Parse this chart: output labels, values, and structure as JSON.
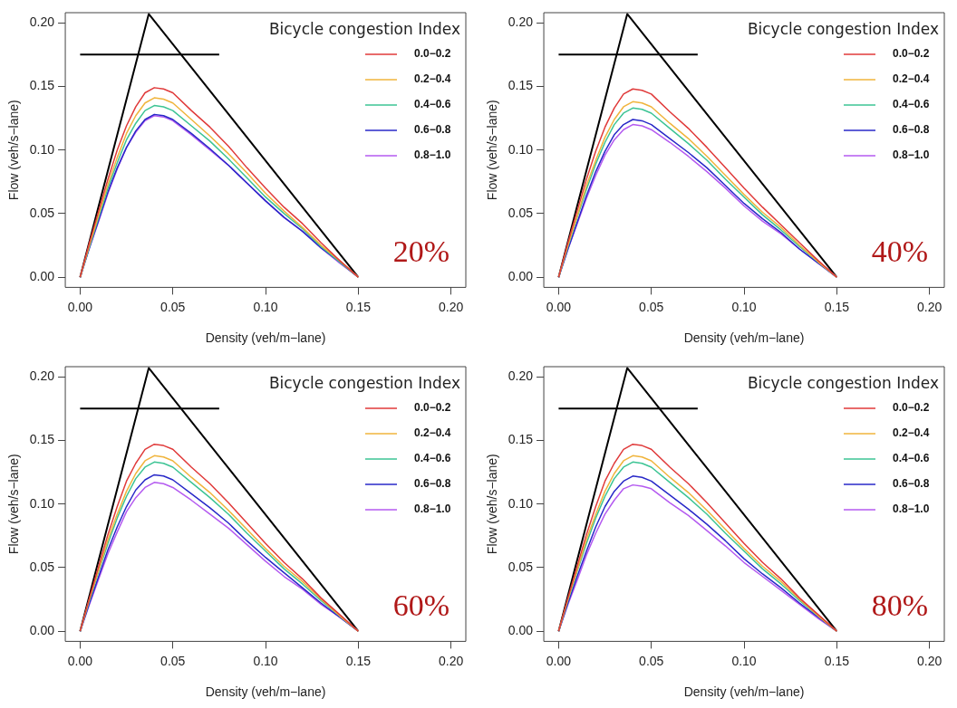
{
  "chart_data": [
    {
      "type": "line",
      "xlabel": "Density (veh/m−lane)",
      "ylabel": "Flow (veh/s−lane)",
      "legend_title": "Bicycle congestion Index",
      "legend": "top right",
      "grid": false,
      "annotations": [
        "20%"
      ],
      "x": [
        0,
        0.005,
        0.01,
        0.015,
        0.02,
        0.025,
        0.03,
        0.035,
        0.04,
        0.045,
        0.05,
        0.06,
        0.07,
        0.08,
        0.09,
        0.1,
        0.11,
        0.12,
        0.13,
        0.14,
        0.15
      ],
      "xlim": [
        -0.008,
        0.208
      ],
      "ylim": [
        -0.008,
        0.208
      ],
      "xticks": [
        {
          "value": 0,
          "label": "0.00"
        },
        {
          "value": 0.05,
          "label": "0.05"
        },
        {
          "value": 0.1,
          "label": "0.10"
        },
        {
          "value": 0.15,
          "label": "0.15"
        },
        {
          "value": 0.2,
          "label": "0.20"
        }
      ],
      "yticks": [
        {
          "value": 0,
          "label": "0.00"
        },
        {
          "value": 0.05,
          "label": "0.05"
        },
        {
          "value": 0.1,
          "label": "0.10"
        },
        {
          "value": 0.15,
          "label": "0.15"
        },
        {
          "value": 0.2,
          "label": "0.20"
        }
      ],
      "series": [
        {
          "name": "0.0−0.2",
          "color": "#e03a3a",
          "values": [
            0,
            0.027,
            0.052,
            0.077,
            0.1,
            0.119,
            0.134,
            0.145,
            0.149,
            0.148,
            0.145,
            0.131,
            0.118,
            0.103,
            0.086,
            0.07,
            0.055,
            0.042,
            0.027,
            0.013,
            0
          ]
        },
        {
          "name": "0.2−0.4",
          "color": "#f0b43c",
          "values": [
            0,
            0.025,
            0.049,
            0.073,
            0.094,
            0.113,
            0.127,
            0.137,
            0.141,
            0.14,
            0.137,
            0.124,
            0.111,
            0.097,
            0.082,
            0.066,
            0.052,
            0.039,
            0.025,
            0.013,
            0
          ]
        },
        {
          "name": "0.4−0.6",
          "color": "#3cc494",
          "values": [
            0,
            0.024,
            0.047,
            0.07,
            0.09,
            0.108,
            0.121,
            0.131,
            0.135,
            0.134,
            0.131,
            0.119,
            0.107,
            0.093,
            0.078,
            0.063,
            0.05,
            0.038,
            0.024,
            0.012,
            0
          ]
        },
        {
          "name": "0.6−0.8",
          "color": "#2828c8",
          "values": [
            0,
            0.023,
            0.045,
            0.067,
            0.086,
            0.102,
            0.115,
            0.124,
            0.128,
            0.127,
            0.124,
            0.113,
            0.101,
            0.088,
            0.074,
            0.06,
            0.047,
            0.036,
            0.023,
            0.012,
            0
          ]
        },
        {
          "name": "0.8−1.0",
          "color": "#b45af0",
          "values": [
            0,
            0.023,
            0.044,
            0.066,
            0.085,
            0.102,
            0.114,
            0.123,
            0.127,
            0.126,
            0.123,
            0.112,
            0.1,
            0.088,
            0.074,
            0.06,
            0.047,
            0.036,
            0.023,
            0.011,
            0
          ]
        },
        {
          "type": "line",
          "color": "#000000",
          "x": [
            0,
            0.037,
            0.15
          ],
          "values": [
            0,
            0.207,
            0
          ]
        },
        {
          "type": "line",
          "color": "#000000",
          "x": [
            0,
            0.075
          ],
          "values": [
            0.175,
            0.175
          ]
        }
      ]
    },
    {
      "type": "line",
      "xlabel": "Density (veh/m−lane)",
      "ylabel": "Flow (veh/s−lane)",
      "legend_title": "Bicycle congestion Index",
      "legend": "top right",
      "grid": false,
      "annotations": [
        "40%"
      ],
      "x": [
        0,
        0.005,
        0.01,
        0.015,
        0.02,
        0.025,
        0.03,
        0.035,
        0.04,
        0.045,
        0.05,
        0.06,
        0.07,
        0.08,
        0.09,
        0.1,
        0.11,
        0.12,
        0.13,
        0.14,
        0.15
      ],
      "xlim": [
        -0.008,
        0.208
      ],
      "ylim": [
        -0.008,
        0.208
      ],
      "xticks": [
        {
          "value": 0,
          "label": "0.00"
        },
        {
          "value": 0.05,
          "label": "0.05"
        },
        {
          "value": 0.1,
          "label": "0.10"
        },
        {
          "value": 0.15,
          "label": "0.15"
        },
        {
          "value": 0.2,
          "label": "0.20"
        }
      ],
      "yticks": [
        {
          "value": 0,
          "label": "0.00"
        },
        {
          "value": 0.05,
          "label": "0.05"
        },
        {
          "value": 0.1,
          "label": "0.10"
        },
        {
          "value": 0.15,
          "label": "0.15"
        },
        {
          "value": 0.2,
          "label": "0.20"
        }
      ],
      "series": [
        {
          "name": "0.0−0.2",
          "color": "#e03a3a",
          "values": [
            0,
            0.027,
            0.052,
            0.077,
            0.099,
            0.118,
            0.133,
            0.144,
            0.148,
            0.147,
            0.144,
            0.13,
            0.117,
            0.102,
            0.086,
            0.07,
            0.055,
            0.041,
            0.027,
            0.013,
            0
          ]
        },
        {
          "name": "0.2−0.4",
          "color": "#f0b43c",
          "values": [
            0,
            0.025,
            0.048,
            0.072,
            0.092,
            0.11,
            0.124,
            0.134,
            0.138,
            0.137,
            0.134,
            0.121,
            0.109,
            0.095,
            0.08,
            0.065,
            0.051,
            0.039,
            0.025,
            0.012,
            0
          ]
        },
        {
          "name": "0.4−0.6",
          "color": "#3cc494",
          "values": [
            0,
            0.024,
            0.047,
            0.069,
            0.089,
            0.106,
            0.12,
            0.129,
            0.133,
            0.132,
            0.129,
            0.117,
            0.105,
            0.092,
            0.077,
            0.063,
            0.049,
            0.037,
            0.024,
            0.012,
            0
          ]
        },
        {
          "name": "0.6−0.8",
          "color": "#2828c8",
          "values": [
            0,
            0.022,
            0.043,
            0.064,
            0.083,
            0.099,
            0.112,
            0.12,
            0.124,
            0.123,
            0.12,
            0.109,
            0.098,
            0.086,
            0.072,
            0.058,
            0.046,
            0.035,
            0.022,
            0.011,
            0
          ]
        },
        {
          "name": "0.8−1.0",
          "color": "#b45af0",
          "values": [
            0,
            0.022,
            0.042,
            0.062,
            0.08,
            0.096,
            0.108,
            0.116,
            0.12,
            0.119,
            0.116,
            0.106,
            0.095,
            0.083,
            0.07,
            0.056,
            0.044,
            0.034,
            0.022,
            0.011,
            0
          ]
        },
        {
          "type": "line",
          "color": "#000000",
          "x": [
            0,
            0.037,
            0.15
          ],
          "values": [
            0,
            0.207,
            0
          ]
        },
        {
          "type": "line",
          "color": "#000000",
          "x": [
            0,
            0.075
          ],
          "values": [
            0.175,
            0.175
          ]
        }
      ]
    },
    {
      "type": "line",
      "xlabel": "Density (veh/m−lane)",
      "ylabel": "Flow (veh/s−lane)",
      "legend_title": "Bicycle congestion Index",
      "legend": "top right",
      "grid": false,
      "annotations": [
        "60%"
      ],
      "x": [
        0,
        0.005,
        0.01,
        0.015,
        0.02,
        0.025,
        0.03,
        0.035,
        0.04,
        0.045,
        0.05,
        0.06,
        0.07,
        0.08,
        0.09,
        0.1,
        0.11,
        0.12,
        0.13,
        0.14,
        0.15
      ],
      "xlim": [
        -0.008,
        0.208
      ],
      "ylim": [
        -0.008,
        0.208
      ],
      "xticks": [
        {
          "value": 0,
          "label": "0.00"
        },
        {
          "value": 0.05,
          "label": "0.05"
        },
        {
          "value": 0.1,
          "label": "0.10"
        },
        {
          "value": 0.15,
          "label": "0.15"
        },
        {
          "value": 0.2,
          "label": "0.20"
        }
      ],
      "yticks": [
        {
          "value": 0,
          "label": "0.00"
        },
        {
          "value": 0.05,
          "label": "0.05"
        },
        {
          "value": 0.1,
          "label": "0.10"
        },
        {
          "value": 0.15,
          "label": "0.15"
        },
        {
          "value": 0.2,
          "label": "0.20"
        }
      ],
      "series": [
        {
          "name": "0.0−0.2",
          "color": "#e03a3a",
          "values": [
            0,
            0.026,
            0.051,
            0.076,
            0.098,
            0.118,
            0.132,
            0.143,
            0.147,
            0.146,
            0.143,
            0.129,
            0.116,
            0.101,
            0.085,
            0.069,
            0.054,
            0.041,
            0.026,
            0.013,
            0
          ]
        },
        {
          "name": "0.2−0.4",
          "color": "#f0b43c",
          "values": [
            0,
            0.025,
            0.048,
            0.072,
            0.092,
            0.11,
            0.124,
            0.134,
            0.138,
            0.137,
            0.134,
            0.121,
            0.109,
            0.095,
            0.08,
            0.065,
            0.051,
            0.039,
            0.025,
            0.012,
            0
          ]
        },
        {
          "name": "0.4−0.6",
          "color": "#3cc494",
          "values": [
            0,
            0.024,
            0.047,
            0.069,
            0.089,
            0.106,
            0.12,
            0.129,
            0.133,
            0.132,
            0.129,
            0.117,
            0.105,
            0.092,
            0.077,
            0.063,
            0.049,
            0.037,
            0.024,
            0.012,
            0
          ]
        },
        {
          "name": "0.6−0.8",
          "color": "#2828c8",
          "values": [
            0,
            0.022,
            0.043,
            0.064,
            0.082,
            0.098,
            0.111,
            0.119,
            0.123,
            0.122,
            0.119,
            0.108,
            0.097,
            0.085,
            0.071,
            0.058,
            0.046,
            0.034,
            0.022,
            0.011,
            0
          ]
        },
        {
          "name": "0.8−1.0",
          "color": "#b45af0",
          "values": [
            0,
            0.021,
            0.041,
            0.061,
            0.078,
            0.094,
            0.105,
            0.113,
            0.117,
            0.116,
            0.113,
            0.103,
            0.092,
            0.081,
            0.068,
            0.055,
            0.043,
            0.033,
            0.021,
            0.011,
            0
          ]
        },
        {
          "type": "line",
          "color": "#000000",
          "x": [
            0,
            0.037,
            0.15
          ],
          "values": [
            0,
            0.207,
            0
          ]
        },
        {
          "type": "line",
          "color": "#000000",
          "x": [
            0,
            0.075
          ],
          "values": [
            0.175,
            0.175
          ]
        }
      ]
    },
    {
      "type": "line",
      "xlabel": "Density (veh/m−lane)",
      "ylabel": "Flow (veh/s−lane)",
      "legend_title": "Bicycle congestion Index",
      "legend": "top right",
      "grid": false,
      "annotations": [
        "80%"
      ],
      "x": [
        0,
        0.005,
        0.01,
        0.015,
        0.02,
        0.025,
        0.03,
        0.035,
        0.04,
        0.045,
        0.05,
        0.06,
        0.07,
        0.08,
        0.09,
        0.1,
        0.11,
        0.12,
        0.13,
        0.14,
        0.15
      ],
      "xlim": [
        -0.008,
        0.208
      ],
      "ylim": [
        -0.008,
        0.208
      ],
      "xticks": [
        {
          "value": 0,
          "label": "0.00"
        },
        {
          "value": 0.05,
          "label": "0.05"
        },
        {
          "value": 0.1,
          "label": "0.10"
        },
        {
          "value": 0.15,
          "label": "0.15"
        },
        {
          "value": 0.2,
          "label": "0.20"
        }
      ],
      "yticks": [
        {
          "value": 0,
          "label": "0.00"
        },
        {
          "value": 0.05,
          "label": "0.05"
        },
        {
          "value": 0.1,
          "label": "0.10"
        },
        {
          "value": 0.15,
          "label": "0.15"
        },
        {
          "value": 0.2,
          "label": "0.20"
        }
      ],
      "series": [
        {
          "name": "0.0−0.2",
          "color": "#e03a3a",
          "values": [
            0,
            0.026,
            0.051,
            0.076,
            0.098,
            0.118,
            0.132,
            0.143,
            0.147,
            0.146,
            0.143,
            0.129,
            0.116,
            0.101,
            0.085,
            0.069,
            0.054,
            0.041,
            0.026,
            0.013,
            0
          ]
        },
        {
          "name": "0.2−0.4",
          "color": "#f0b43c",
          "values": [
            0,
            0.025,
            0.048,
            0.072,
            0.092,
            0.11,
            0.124,
            0.134,
            0.138,
            0.137,
            0.134,
            0.121,
            0.109,
            0.095,
            0.08,
            0.065,
            0.051,
            0.039,
            0.025,
            0.012,
            0
          ]
        },
        {
          "name": "0.4−0.6",
          "color": "#3cc494",
          "values": [
            0,
            0.024,
            0.047,
            0.069,
            0.089,
            0.106,
            0.12,
            0.129,
            0.133,
            0.132,
            0.129,
            0.117,
            0.105,
            0.092,
            0.077,
            0.063,
            0.049,
            0.037,
            0.024,
            0.012,
            0
          ]
        },
        {
          "name": "0.6−0.8",
          "color": "#2828c8",
          "values": [
            0,
            0.022,
            0.043,
            0.063,
            0.082,
            0.098,
            0.11,
            0.118,
            0.122,
            0.121,
            0.118,
            0.107,
            0.096,
            0.084,
            0.071,
            0.057,
            0.045,
            0.034,
            0.022,
            0.011,
            0
          ]
        },
        {
          "name": "0.8−1.0",
          "color": "#b45af0",
          "values": [
            0,
            0.021,
            0.04,
            0.06,
            0.077,
            0.092,
            0.103,
            0.112,
            0.115,
            0.114,
            0.112,
            0.101,
            0.091,
            0.079,
            0.067,
            0.054,
            0.043,
            0.032,
            0.021,
            0.01,
            0
          ]
        },
        {
          "type": "line",
          "color": "#000000",
          "x": [
            0,
            0.037,
            0.15
          ],
          "values": [
            0,
            0.207,
            0
          ]
        },
        {
          "type": "line",
          "color": "#000000",
          "x": [
            0,
            0.075
          ],
          "values": [
            0.175,
            0.175
          ]
        }
      ]
    }
  ]
}
